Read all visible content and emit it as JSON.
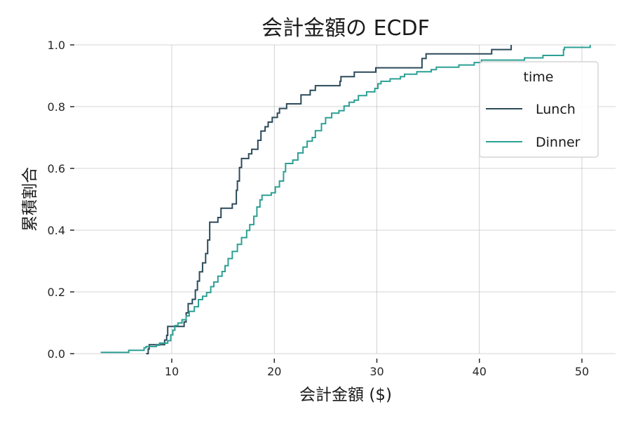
{
  "chart_data": {
    "type": "line",
    "subtype": "ecdf-step",
    "title": "会計金額の ECDF",
    "xlabel": "会計金額 ($)",
    "ylabel": "累積割合",
    "xlim": [
      1.5,
      53
    ],
    "ylim": [
      0,
      1
    ],
    "xticks": [
      10,
      20,
      30,
      40,
      50
    ],
    "xtick_labels": [
      "10",
      "20",
      "30",
      "40",
      "50"
    ],
    "yticks": [
      0.0,
      0.2,
      0.4,
      0.6,
      0.8,
      1.0
    ],
    "ytick_labels": [
      "0.0",
      "0.2",
      "0.4",
      "0.6",
      "0.8",
      "1.0"
    ],
    "grid": true,
    "legend": {
      "title": "time",
      "position": "upper right",
      "entries": [
        {
          "label": "Lunch",
          "color": "#2c4a5a"
        },
        {
          "label": "Dinner",
          "color": "#2ca094"
        }
      ]
    },
    "series": [
      {
        "name": "Lunch",
        "color": "#2c4a5a",
        "points": [
          [
            7.5,
            0.0
          ],
          [
            7.7,
            0.015
          ],
          [
            7.8,
            0.029
          ],
          [
            9.3,
            0.044
          ],
          [
            9.5,
            0.059
          ],
          [
            9.6,
            0.088
          ],
          [
            11.2,
            0.103
          ],
          [
            11.4,
            0.132
          ],
          [
            11.6,
            0.162
          ],
          [
            12.0,
            0.176
          ],
          [
            12.3,
            0.206
          ],
          [
            12.5,
            0.235
          ],
          [
            12.7,
            0.265
          ],
          [
            13.0,
            0.294
          ],
          [
            13.3,
            0.324
          ],
          [
            13.5,
            0.368
          ],
          [
            13.7,
            0.426
          ],
          [
            14.5,
            0.441
          ],
          [
            14.8,
            0.471
          ],
          [
            15.9,
            0.485
          ],
          [
            16.3,
            0.529
          ],
          [
            16.4,
            0.559
          ],
          [
            16.6,
            0.603
          ],
          [
            16.8,
            0.632
          ],
          [
            17.5,
            0.647
          ],
          [
            17.8,
            0.662
          ],
          [
            18.4,
            0.691
          ],
          [
            18.7,
            0.721
          ],
          [
            19.1,
            0.735
          ],
          [
            19.4,
            0.75
          ],
          [
            19.8,
            0.765
          ],
          [
            20.3,
            0.779
          ],
          [
            20.5,
            0.794
          ],
          [
            21.2,
            0.809
          ],
          [
            22.6,
            0.838
          ],
          [
            23.5,
            0.853
          ],
          [
            24.0,
            0.868
          ],
          [
            26.4,
            0.882
          ],
          [
            26.5,
            0.897
          ],
          [
            27.8,
            0.912
          ],
          [
            29.9,
            0.926
          ],
          [
            34.4,
            0.956
          ],
          [
            34.8,
            0.971
          ],
          [
            41.2,
            0.985
          ],
          [
            43.1,
            1.0
          ]
        ]
      },
      {
        "name": "Dinner",
        "color": "#2ca094",
        "points": [
          [
            3.07,
            0.004
          ],
          [
            5.8,
            0.011
          ],
          [
            7.3,
            0.019
          ],
          [
            7.5,
            0.023
          ],
          [
            8.5,
            0.027
          ],
          [
            8.8,
            0.034
          ],
          [
            9.6,
            0.042
          ],
          [
            9.9,
            0.061
          ],
          [
            10.1,
            0.076
          ],
          [
            10.3,
            0.091
          ],
          [
            10.6,
            0.099
          ],
          [
            11.0,
            0.11
          ],
          [
            11.4,
            0.122
          ],
          [
            11.7,
            0.137
          ],
          [
            12.2,
            0.152
          ],
          [
            12.6,
            0.175
          ],
          [
            13.0,
            0.186
          ],
          [
            13.4,
            0.198
          ],
          [
            13.8,
            0.217
          ],
          [
            14.1,
            0.232
          ],
          [
            14.5,
            0.251
          ],
          [
            14.9,
            0.266
          ],
          [
            15.2,
            0.285
          ],
          [
            15.5,
            0.308
          ],
          [
            15.9,
            0.331
          ],
          [
            16.4,
            0.354
          ],
          [
            16.8,
            0.376
          ],
          [
            17.3,
            0.399
          ],
          [
            17.6,
            0.418
          ],
          [
            18.0,
            0.445
          ],
          [
            18.3,
            0.475
          ],
          [
            18.6,
            0.498
          ],
          [
            18.8,
            0.513
          ],
          [
            19.7,
            0.521
          ],
          [
            20.1,
            0.54
          ],
          [
            20.5,
            0.559
          ],
          [
            20.9,
            0.589
          ],
          [
            21.1,
            0.616
          ],
          [
            21.8,
            0.627
          ],
          [
            22.3,
            0.65
          ],
          [
            22.8,
            0.669
          ],
          [
            23.2,
            0.688
          ],
          [
            23.7,
            0.7
          ],
          [
            24.0,
            0.722
          ],
          [
            24.6,
            0.745
          ],
          [
            25.0,
            0.764
          ],
          [
            25.6,
            0.779
          ],
          [
            26.3,
            0.787
          ],
          [
            26.8,
            0.802
          ],
          [
            27.3,
            0.814
          ],
          [
            27.8,
            0.821
          ],
          [
            28.2,
            0.836
          ],
          [
            29.0,
            0.848
          ],
          [
            29.8,
            0.859
          ],
          [
            30.1,
            0.874
          ],
          [
            30.4,
            0.882
          ],
          [
            31.3,
            0.89
          ],
          [
            32.3,
            0.897
          ],
          [
            32.7,
            0.905
          ],
          [
            33.9,
            0.913
          ],
          [
            35.3,
            0.92
          ],
          [
            35.8,
            0.928
          ],
          [
            38.0,
            0.935
          ],
          [
            39.5,
            0.943
          ],
          [
            40.2,
            0.951
          ],
          [
            44.4,
            0.958
          ],
          [
            46.2,
            0.966
          ],
          [
            48.2,
            0.985
          ],
          [
            48.3,
            0.992
          ],
          [
            50.81,
            1.0
          ]
        ]
      }
    ]
  }
}
